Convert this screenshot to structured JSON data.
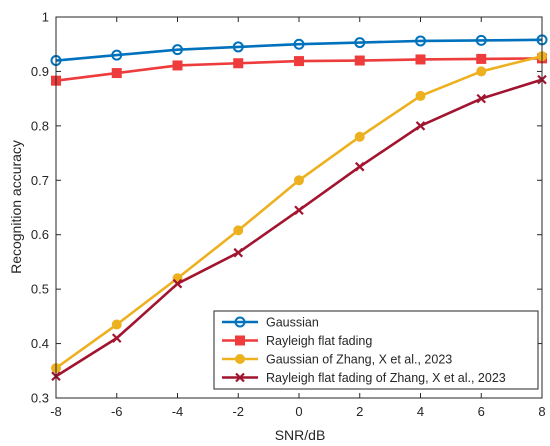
{
  "chart_data": {
    "type": "line",
    "xlabel": "SNR/dB",
    "ylabel": "Recognition accuracy",
    "xlim": [
      -8,
      8
    ],
    "ylim": [
      0.3,
      1
    ],
    "x": [
      -8,
      -6,
      -4,
      -2,
      0,
      2,
      4,
      6,
      8
    ],
    "xticks": [
      "-8",
      "-6",
      "-4",
      "-2",
      "0",
      "2",
      "4",
      "6",
      "8"
    ],
    "yticks": [
      "0.3",
      "0.4",
      "0.5",
      "0.6",
      "0.7",
      "0.8",
      "0.9",
      "1"
    ],
    "grid": false,
    "legend_position": "bottom-right",
    "series": [
      {
        "name": "Gaussian",
        "color": "#0072BD",
        "marker": "circle",
        "values": [
          0.92,
          0.93,
          0.94,
          0.945,
          0.95,
          0.953,
          0.956,
          0.957,
          0.958
        ]
      },
      {
        "name": "Rayleigh flat fading",
        "color": "#EE3B3B",
        "marker": "square",
        "values": [
          0.883,
          0.897,
          0.911,
          0.915,
          0.919,
          0.92,
          0.922,
          0.923,
          0.924
        ]
      },
      {
        "name": "Gaussian of Zhang, X et al., 2023",
        "color": "#EDB120",
        "marker": "circle",
        "values": [
          0.355,
          0.435,
          0.52,
          0.608,
          0.7,
          0.78,
          0.855,
          0.9,
          0.928
        ]
      },
      {
        "name": "Rayleigh flat fading of Zhang, X et al., 2023",
        "color": "#A2142F",
        "marker": "x",
        "values": [
          0.34,
          0.41,
          0.51,
          0.567,
          0.645,
          0.725,
          0.8,
          0.85,
          0.885
        ]
      }
    ]
  }
}
